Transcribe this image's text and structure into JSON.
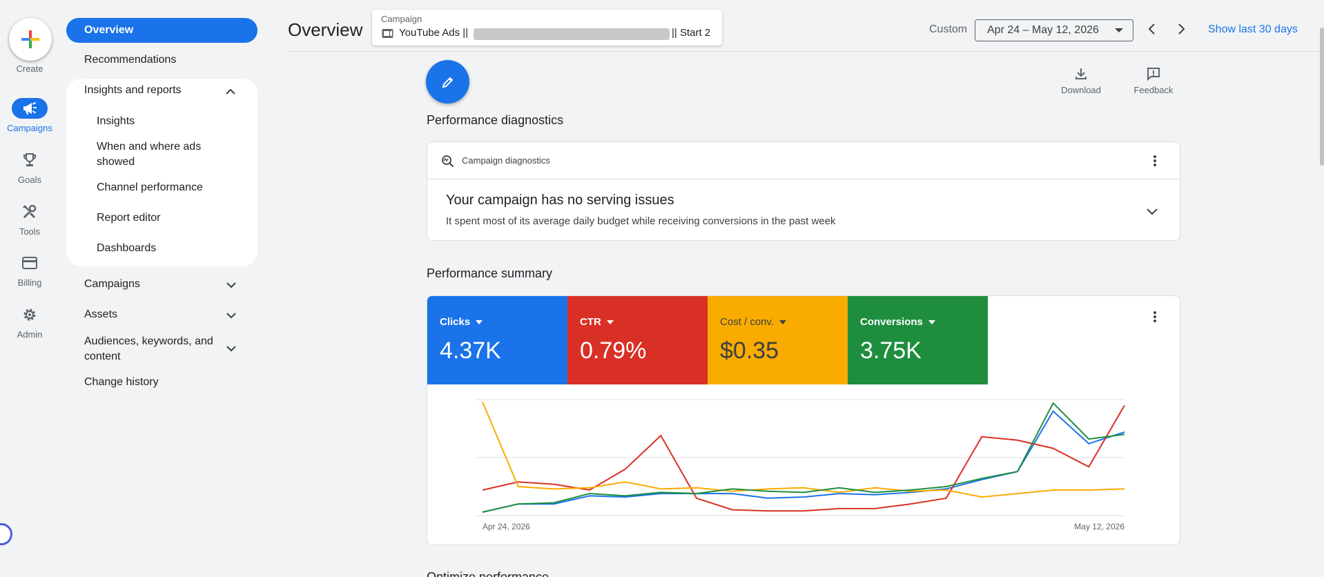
{
  "rail": {
    "create_label": "Create",
    "items": [
      {
        "label": "Campaigns",
        "icon": "megaphone-icon",
        "active": true
      },
      {
        "label": "Goals",
        "icon": "trophy-icon"
      },
      {
        "label": "Tools",
        "icon": "tools-icon"
      },
      {
        "label": "Billing",
        "icon": "credit-card-icon"
      },
      {
        "label": "Admin",
        "icon": "gear-icon"
      }
    ]
  },
  "nav": {
    "overview": "Overview",
    "recommendations": "Recommendations",
    "insights_reports": "Insights and reports",
    "sub": [
      "Insights",
      "When and where ads showed",
      "Channel performance",
      "Report editor",
      "Dashboards"
    ],
    "campaigns": "Campaigns",
    "assets": "Assets",
    "audiences": "Audiences, keywords, and content",
    "change_history": "Change history"
  },
  "header": {
    "title": "Overview",
    "campaign_label": "Campaign",
    "campaign_prefix": "YouTube Ads ||",
    "campaign_suffix": "|| Start 2",
    "custom_label": "Custom",
    "date_range": "Apr 24 – May 12, 2026",
    "show_last": "Show last 30 days"
  },
  "tools": {
    "download": "Download",
    "feedback": "Feedback"
  },
  "diagnostics": {
    "section_title": "Performance diagnostics",
    "head_label": "Campaign diagnostics",
    "main": "Your campaign has no serving issues",
    "sub": "It spent most of its average daily budget while receiving conversions in the past week"
  },
  "summary": {
    "section_title": "Performance summary",
    "metrics": [
      {
        "name": "Clicks",
        "value": "4.37K",
        "color": "#1a73e8"
      },
      {
        "name": "CTR",
        "value": "0.79%",
        "color": "#d93025"
      },
      {
        "name": "Cost / conv.",
        "value": "$0.35",
        "color": "#f9ab00"
      },
      {
        "name": "Conversions",
        "value": "3.75K",
        "color": "#1e8e3e"
      }
    ]
  },
  "chart_data": {
    "type": "line",
    "x_start_label": "Apr 24, 2026",
    "x_end_label": "May 12, 2026",
    "grid": true,
    "series": [
      {
        "name": "Clicks",
        "color": "#1a73e8",
        "values": [
          0.03,
          0.1,
          0.1,
          0.17,
          0.16,
          0.19,
          0.19,
          0.19,
          0.15,
          0.16,
          0.19,
          0.18,
          0.2,
          0.23,
          0.31,
          0.38,
          0.9,
          0.62,
          0.72
        ]
      },
      {
        "name": "CTR",
        "color": "#d93025",
        "values": [
          0.22,
          0.29,
          0.27,
          0.22,
          0.4,
          0.69,
          0.15,
          0.05,
          0.04,
          0.04,
          0.06,
          0.06,
          0.1,
          0.15,
          0.68,
          0.65,
          0.58,
          0.42,
          0.95
        ]
      },
      {
        "name": "Cost / conv.",
        "color": "#f9ab00",
        "values": [
          0.98,
          0.25,
          0.23,
          0.24,
          0.29,
          0.23,
          0.24,
          0.21,
          0.23,
          0.24,
          0.2,
          0.24,
          0.21,
          0.22,
          0.16,
          0.19,
          0.22,
          0.22,
          0.23
        ]
      },
      {
        "name": "Conversions",
        "color": "#1e8e3e",
        "values": [
          0.03,
          0.1,
          0.11,
          0.19,
          0.17,
          0.2,
          0.19,
          0.23,
          0.21,
          0.2,
          0.24,
          0.2,
          0.22,
          0.25,
          0.32,
          0.38,
          0.97,
          0.66,
          0.7
        ]
      }
    ]
  },
  "bottom_section": "Optimize performance"
}
